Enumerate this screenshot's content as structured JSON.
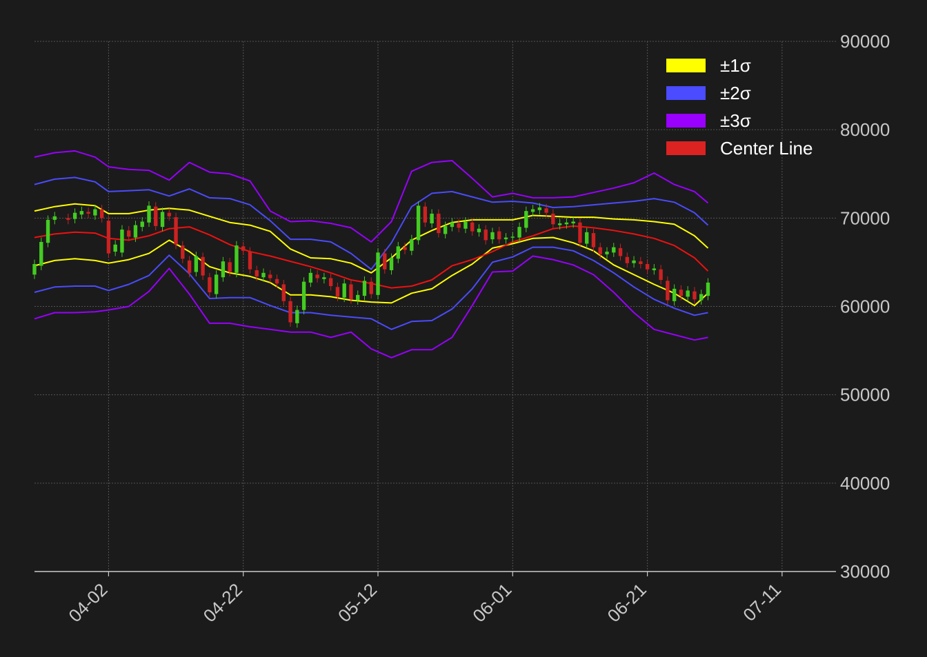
{
  "chart_data": {
    "type": "line",
    "subtype": "candlestick with Bollinger-style sigma bands",
    "title": "",
    "xlabel": "",
    "ylabel": "",
    "ylim": [
      30000,
      90000
    ],
    "y_ticks": [
      30000,
      40000,
      50000,
      60000,
      70000,
      80000,
      90000
    ],
    "x_ticks": [
      "04-02",
      "04-22",
      "05-12",
      "06-01",
      "06-21",
      "07-11"
    ],
    "x_start": "03-22",
    "x_end": "07-19",
    "grid": true,
    "legend_position": "top-right",
    "legend": [
      {
        "label": "±1σ",
        "color": "#ffff00"
      },
      {
        "label": "±2σ",
        "color": "#4b4bff"
      },
      {
        "label": "±3σ",
        "color": "#9900ff"
      },
      {
        "label": "Center Line",
        "color": "#dd2222"
      }
    ],
    "colors": {
      "background": "#1b1b1b",
      "up": "#44cc22",
      "down": "#cc2222",
      "grid": "#555555",
      "axis": "#cccccc"
    },
    "bands": {
      "x": [
        "03-22",
        "03-25",
        "03-28",
        "03-31",
        "04-02",
        "04-05",
        "04-08",
        "04-11",
        "04-14",
        "04-17",
        "04-20",
        "04-23",
        "04-26",
        "04-29",
        "05-02",
        "05-05",
        "05-08",
        "05-11",
        "05-14",
        "05-17",
        "05-20",
        "05-23",
        "05-26",
        "05-29",
        "06-01",
        "06-04",
        "06-07",
        "06-10",
        "06-13",
        "06-16",
        "06-19",
        "06-22",
        "06-25",
        "06-28",
        "06-30"
      ],
      "center": [
        67800,
        68200,
        68400,
        68300,
        67700,
        67500,
        68000,
        68800,
        69000,
        68100,
        67000,
        66200,
        65700,
        65100,
        64500,
        63800,
        63000,
        62600,
        62100,
        62300,
        63000,
        64600,
        65300,
        66200,
        67300,
        68000,
        68800,
        69100,
        68900,
        68600,
        68200,
        67700,
        66900,
        65500,
        64000
      ],
      "upper1": [
        70800,
        71300,
        71600,
        71400,
        70500,
        70500,
        70900,
        71100,
        70900,
        70200,
        69500,
        69200,
        68500,
        66500,
        65500,
        65400,
        64900,
        63800,
        65500,
        67500,
        68600,
        69500,
        69800,
        69800,
        69800,
        70300,
        70200,
        70100,
        70100,
        69900,
        69800,
        69600,
        69300,
        68000,
        66600
      ],
      "lower1": [
        64600,
        65200,
        65400,
        65200,
        64900,
        65300,
        66000,
        67500,
        66200,
        64500,
        63800,
        63400,
        62700,
        61300,
        61300,
        61100,
        60700,
        60500,
        60400,
        61500,
        62000,
        63500,
        64800,
        66600,
        67100,
        67700,
        67800,
        67200,
        66300,
        64700,
        63600,
        62500,
        61500,
        60100,
        61500
      ],
      "upper2": [
        73800,
        74400,
        74600,
        74100,
        73000,
        73100,
        73200,
        72500,
        73300,
        72300,
        72200,
        71500,
        69700,
        67600,
        67600,
        67300,
        66000,
        64200,
        67200,
        71300,
        72800,
        73000,
        72400,
        71800,
        71900,
        71700,
        71200,
        71300,
        71500,
        71700,
        71900,
        72200,
        71800,
        70600,
        69200
      ],
      "lower2": [
        61600,
        62200,
        62300,
        62300,
        61800,
        62500,
        63500,
        65800,
        63700,
        60900,
        61000,
        61000,
        60100,
        59300,
        59300,
        59000,
        58800,
        58600,
        57400,
        58300,
        58400,
        59700,
        62000,
        65000,
        65600,
        66700,
        66700,
        66300,
        65200,
        63800,
        62200,
        60800,
        59800,
        59000,
        59300
      ],
      "upper3": [
        76900,
        77400,
        77600,
        76900,
        75800,
        75500,
        75400,
        74300,
        76300,
        75200,
        75000,
        74200,
        70800,
        69600,
        69700,
        69400,
        68900,
        67300,
        69600,
        75300,
        76300,
        76500,
        74500,
        72400,
        72800,
        72300,
        72300,
        72400,
        72900,
        73400,
        74000,
        75100,
        73800,
        73000,
        71700
      ],
      "lower3": [
        58600,
        59300,
        59300,
        59400,
        59600,
        60000,
        61700,
        64300,
        61400,
        58100,
        58100,
        57700,
        57400,
        57100,
        57100,
        56500,
        57100,
        55200,
        54200,
        55100,
        55100,
        56500,
        60100,
        63900,
        64000,
        65700,
        65300,
        64700,
        63600,
        61600,
        59300,
        57400,
        56800,
        56200,
        56500
      ]
    },
    "candles_note": "daily OHLC candlesticks (green up, red down) from 03-22 to 06-30, roughly tracking the center line",
    "candles": [
      {
        "t": "03-22",
        "o": 63600,
        "c": 64800
      },
      {
        "t": "03-23",
        "o": 64600,
        "c": 67300
      },
      {
        "t": "03-24",
        "o": 67200,
        "c": 69800
      },
      {
        "t": "03-25",
        "o": 69800,
        "c": 70200
      },
      {
        "t": "03-27",
        "o": 70000,
        "c": 69800
      },
      {
        "t": "03-28",
        "o": 69900,
        "c": 70600
      },
      {
        "t": "03-29",
        "o": 70400,
        "c": 70800
      },
      {
        "t": "03-30",
        "o": 70700,
        "c": 70500
      },
      {
        "t": "03-31",
        "o": 70300,
        "c": 71000
      },
      {
        "t": "04-01",
        "o": 71000,
        "c": 70000
      },
      {
        "t": "04-02",
        "o": 69700,
        "c": 66000
      },
      {
        "t": "04-03",
        "o": 66200,
        "c": 67000
      },
      {
        "t": "04-04",
        "o": 66100,
        "c": 68700
      },
      {
        "t": "04-05",
        "o": 68600,
        "c": 67900
      },
      {
        "t": "04-06",
        "o": 67800,
        "c": 69200
      },
      {
        "t": "04-07",
        "o": 69000,
        "c": 69600
      },
      {
        "t": "04-08",
        "o": 69500,
        "c": 71400
      },
      {
        "t": "04-09",
        "o": 71300,
        "c": 69100
      },
      {
        "t": "04-10",
        "o": 69000,
        "c": 70700
      },
      {
        "t": "04-11",
        "o": 70600,
        "c": 70200
      },
      {
        "t": "04-12",
        "o": 70100,
        "c": 67000
      },
      {
        "t": "04-13",
        "o": 66900,
        "c": 65400
      },
      {
        "t": "04-14",
        "o": 65200,
        "c": 63800
      },
      {
        "t": "04-15",
        "o": 63900,
        "c": 65700
      },
      {
        "t": "04-16",
        "o": 65600,
        "c": 63500
      },
      {
        "t": "04-17",
        "o": 63300,
        "c": 61600
      },
      {
        "t": "04-18",
        "o": 61400,
        "c": 63600
      },
      {
        "t": "04-19",
        "o": 63300,
        "c": 65100
      },
      {
        "t": "04-20",
        "o": 65000,
        "c": 63900
      },
      {
        "t": "04-21",
        "o": 63800,
        "c": 66900
      },
      {
        "t": "04-22",
        "o": 66800,
        "c": 66300
      },
      {
        "t": "04-23",
        "o": 66200,
        "c": 64200
      },
      {
        "t": "04-24",
        "o": 64100,
        "c": 63400
      },
      {
        "t": "04-25",
        "o": 63300,
        "c": 63800
      },
      {
        "t": "04-26",
        "o": 63600,
        "c": 63200
      },
      {
        "t": "04-27",
        "o": 63100,
        "c": 62600
      },
      {
        "t": "04-28",
        "o": 62500,
        "c": 60600
      },
      {
        "t": "04-29",
        "o": 60600,
        "c": 58200
      },
      {
        "t": "04-30",
        "o": 58100,
        "c": 59600
      },
      {
        "t": "05-01",
        "o": 59600,
        "c": 62800
      },
      {
        "t": "05-02",
        "o": 62700,
        "c": 63800
      },
      {
        "t": "05-03",
        "o": 63600,
        "c": 63200
      },
      {
        "t": "05-04",
        "o": 63100,
        "c": 63300
      },
      {
        "t": "05-05",
        "o": 63200,
        "c": 62300
      },
      {
        "t": "05-06",
        "o": 62200,
        "c": 61100
      },
      {
        "t": "05-07",
        "o": 61000,
        "c": 62600
      },
      {
        "t": "05-08",
        "o": 62500,
        "c": 60800
      },
      {
        "t": "05-09",
        "o": 60700,
        "c": 61300
      },
      {
        "t": "05-10",
        "o": 61200,
        "c": 62900
      },
      {
        "t": "05-11",
        "o": 62800,
        "c": 61400
      },
      {
        "t": "05-12",
        "o": 61300,
        "c": 66100
      },
      {
        "t": "05-13",
        "o": 66000,
        "c": 64200
      },
      {
        "t": "05-14",
        "o": 64100,
        "c": 65500
      },
      {
        "t": "05-15",
        "o": 65400,
        "c": 66800
      },
      {
        "t": "05-16",
        "o": 66700,
        "c": 66400
      },
      {
        "t": "05-17",
        "o": 66300,
        "c": 67600
      },
      {
        "t": "05-18",
        "o": 67500,
        "c": 71400
      },
      {
        "t": "05-19",
        "o": 71300,
        "c": 69500
      },
      {
        "t": "05-20",
        "o": 69400,
        "c": 70500
      },
      {
        "t": "05-21",
        "o": 70500,
        "c": 68300
      },
      {
        "t": "05-22",
        "o": 68200,
        "c": 69100
      },
      {
        "t": "05-23",
        "o": 69000,
        "c": 69500
      },
      {
        "t": "05-24",
        "o": 69400,
        "c": 68900
      },
      {
        "t": "05-25",
        "o": 68800,
        "c": 69600
      },
      {
        "t": "05-26",
        "o": 69500,
        "c": 68500
      },
      {
        "t": "05-27",
        "o": 68400,
        "c": 68800
      },
      {
        "t": "05-28",
        "o": 68700,
        "c": 67500
      },
      {
        "t": "05-29",
        "o": 67600,
        "c": 68400
      },
      {
        "t": "05-30",
        "o": 68500,
        "c": 67600
      },
      {
        "t": "05-31",
        "o": 67600,
        "c": 67800
      },
      {
        "t": "06-01",
        "o": 67800,
        "c": 67900
      },
      {
        "t": "06-02",
        "o": 67800,
        "c": 69000
      },
      {
        "t": "06-03",
        "o": 68900,
        "c": 70800
      },
      {
        "t": "06-04",
        "o": 70700,
        "c": 71000
      },
      {
        "t": "06-05",
        "o": 70900,
        "c": 71200
      },
      {
        "t": "06-06",
        "o": 71100,
        "c": 70600
      },
      {
        "t": "06-07",
        "o": 70500,
        "c": 69300
      },
      {
        "t": "06-08",
        "o": 69200,
        "c": 69400
      },
      {
        "t": "06-09",
        "o": 69300,
        "c": 69500
      },
      {
        "t": "06-10",
        "o": 69400,
        "c": 69600
      },
      {
        "t": "06-11",
        "o": 69500,
        "c": 67200
      },
      {
        "t": "06-12",
        "o": 67100,
        "c": 68400
      },
      {
        "t": "06-13",
        "o": 68300,
        "c": 66700
      },
      {
        "t": "06-14",
        "o": 66700,
        "c": 65900
      },
      {
        "t": "06-15",
        "o": 65900,
        "c": 66200
      },
      {
        "t": "06-16",
        "o": 66100,
        "c": 66700
      },
      {
        "t": "06-17",
        "o": 66600,
        "c": 65700
      },
      {
        "t": "06-18",
        "o": 65600,
        "c": 64900
      },
      {
        "t": "06-19",
        "o": 64900,
        "c": 65200
      },
      {
        "t": "06-20",
        "o": 65100,
        "c": 64800
      },
      {
        "t": "06-21",
        "o": 64800,
        "c": 64200
      },
      {
        "t": "06-22",
        "o": 64100,
        "c": 64300
      },
      {
        "t": "06-23",
        "o": 64200,
        "c": 63000
      },
      {
        "t": "06-24",
        "o": 62900,
        "c": 60700
      },
      {
        "t": "06-25",
        "o": 60600,
        "c": 62000
      },
      {
        "t": "06-26",
        "o": 61900,
        "c": 61200
      },
      {
        "t": "06-27",
        "o": 61100,
        "c": 61800
      },
      {
        "t": "06-28",
        "o": 61700,
        "c": 60800
      },
      {
        "t": "06-29",
        "o": 60700,
        "c": 61400
      },
      {
        "t": "06-30",
        "o": 61200,
        "c": 62700
      }
    ]
  }
}
